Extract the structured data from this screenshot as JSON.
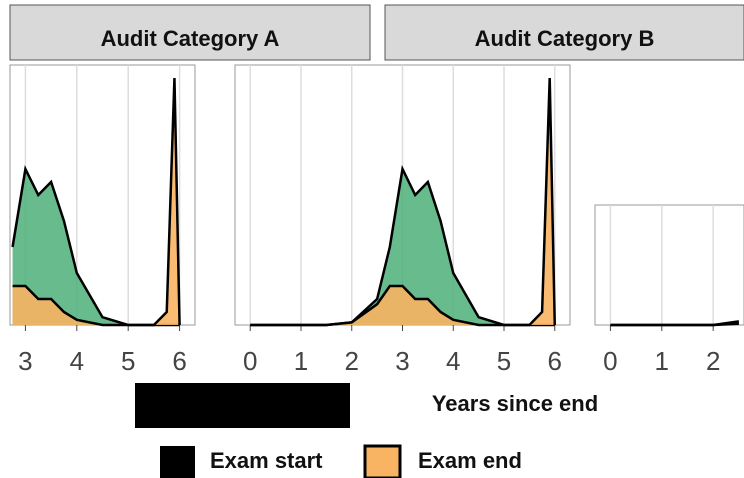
{
  "chart_data": [
    {
      "type": "area",
      "title": "Audit Category A",
      "x": [
        2.75,
        3,
        3.25,
        3.5,
        3.75,
        4,
        4.5,
        5,
        5.5,
        5.75,
        5.9,
        6
      ],
      "series": [
        {
          "name": "Exam start",
          "color": "#000000",
          "values": [
            3,
            6,
            5,
            5.5,
            4,
            2,
            0.3,
            0,
            0,
            0,
            0,
            0
          ]
        },
        {
          "name": "Exam end",
          "color": "#f8b462",
          "values": [
            1.5,
            1.5,
            1,
            1,
            0.5,
            0.2,
            0,
            0,
            0,
            0.5,
            9.5,
            0
          ]
        }
      ],
      "fill_color": "#4caf78",
      "xlim": [
        2.7,
        6.3
      ],
      "ylim": [
        0,
        10
      ],
      "xticks": [
        3,
        4,
        5,
        6
      ],
      "grid": true
    },
    {
      "type": "area",
      "title": "Audit Category B",
      "x": [
        0,
        0.5,
        1,
        1.5,
        2,
        2.5,
        2.75,
        3,
        3.25,
        3.5,
        3.75,
        4,
        4.5,
        5,
        5.5,
        5.75,
        5.9,
        6
      ],
      "series": [
        {
          "name": "Exam start",
          "color": "#000000",
          "values": [
            0,
            0,
            0,
            0,
            0.1,
            1,
            3,
            6,
            5,
            5.5,
            4,
            2,
            0.3,
            0,
            0,
            0,
            0,
            0
          ]
        },
        {
          "name": "Exam end",
          "color": "#f8b462",
          "values": [
            0,
            0,
            0,
            0,
            0.1,
            0.8,
            1.5,
            1.5,
            1,
            1,
            0.5,
            0.2,
            0,
            0,
            0,
            0.5,
            9.5,
            0
          ]
        }
      ],
      "fill_color": "#4caf78",
      "xlim": [
        -0.3,
        6.3
      ],
      "ylim": [
        0,
        10
      ],
      "xticks": [
        0,
        1,
        2,
        3,
        4,
        5,
        6
      ],
      "grid": true,
      "x_label": "Years since end"
    },
    {
      "type": "area",
      "x": [
        0,
        0.5,
        1,
        1.5,
        2,
        2.5
      ],
      "series": [
        {
          "name": "Exam start",
          "color": "#000000",
          "values": [
            0,
            0,
            0,
            0,
            0,
            0.3
          ]
        },
        {
          "name": "Exam end",
          "color": "#f8b462",
          "values": [
            0,
            0,
            0,
            0,
            0,
            0.1
          ]
        }
      ],
      "fill_color": "#4caf78",
      "xlim": [
        -0.3,
        2.6
      ],
      "ylim": [
        0,
        10
      ],
      "xticks": [
        0,
        1,
        2
      ],
      "grid": true
    }
  ]
}
